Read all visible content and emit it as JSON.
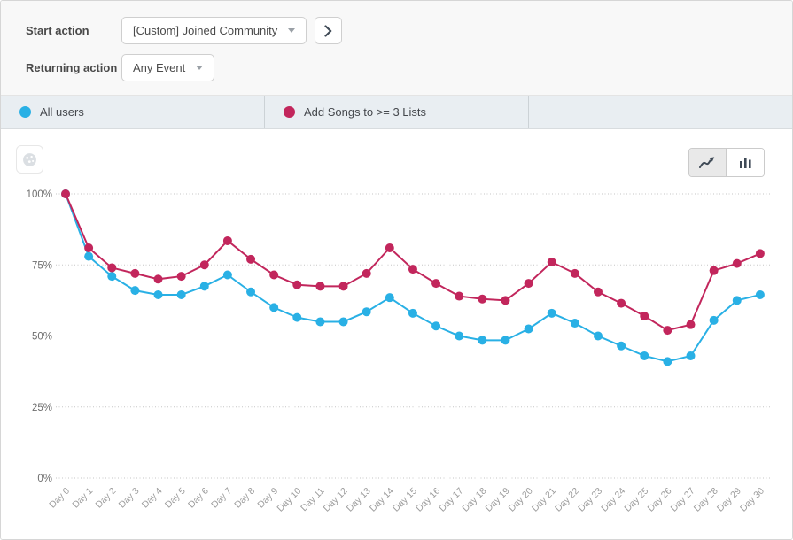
{
  "query_builder": {
    "start_action_label": "Start action",
    "start_action_value": "[Custom] Joined Community",
    "returning_action_label": "Returning action",
    "returning_action_value": "Any Event"
  },
  "legend": {
    "items": [
      {
        "label": "All users",
        "color": "#29B0E5"
      },
      {
        "label": "Add Songs to >= 3 Lists",
        "color": "#C2265C"
      }
    ]
  },
  "chart_toolbar": {
    "options_icon": "donut-chart-icon",
    "view_options": [
      {
        "icon": "line-chart-icon",
        "selected": true
      },
      {
        "icon": "bar-chart-icon",
        "selected": false
      }
    ]
  },
  "chart_data": {
    "type": "line",
    "x": [
      "Day 0",
      "Day 1",
      "Day 2",
      "Day 3",
      "Day 4",
      "Day 5",
      "Day 6",
      "Day 7",
      "Day 8",
      "Day 9",
      "Day 10",
      "Day 11",
      "Day 12",
      "Day 13",
      "Day 14",
      "Day 15",
      "Day 16",
      "Day 17",
      "Day 18",
      "Day 19",
      "Day 20",
      "Day 21",
      "Day 22",
      "Day 23",
      "Day 24",
      "Day 25",
      "Day 26",
      "Day 27",
      "Day 28",
      "Day 29",
      "Day 30"
    ],
    "series": [
      {
        "name": "All users",
        "color": "#29B0E5",
        "values": [
          100,
          78,
          71,
          66,
          64.5,
          64.5,
          67.5,
          71.5,
          65.5,
          60,
          56.5,
          55,
          55,
          58.5,
          63.5,
          58,
          53.5,
          50,
          48.5,
          48.5,
          52.5,
          58,
          54.5,
          50,
          46.5,
          43,
          41,
          43,
          55.5,
          62.5,
          64.5
        ]
      },
      {
        "name": "Add Songs to >= 3 Lists",
        "color": "#C2265C",
        "values": [
          100,
          81,
          74,
          72,
          70,
          71,
          75,
          83.5,
          77,
          71.5,
          68,
          67.5,
          67.5,
          72,
          81,
          73.5,
          68.5,
          64,
          63,
          62.5,
          68.5,
          76,
          72,
          65.5,
          61.5,
          57,
          52,
          54,
          73,
          75.5,
          79
        ]
      }
    ],
    "y_ticks": [
      "0%",
      "25%",
      "50%",
      "75%",
      "100%"
    ],
    "ylim": [
      0,
      100
    ],
    "grid": true,
    "legend_position": "top"
  }
}
